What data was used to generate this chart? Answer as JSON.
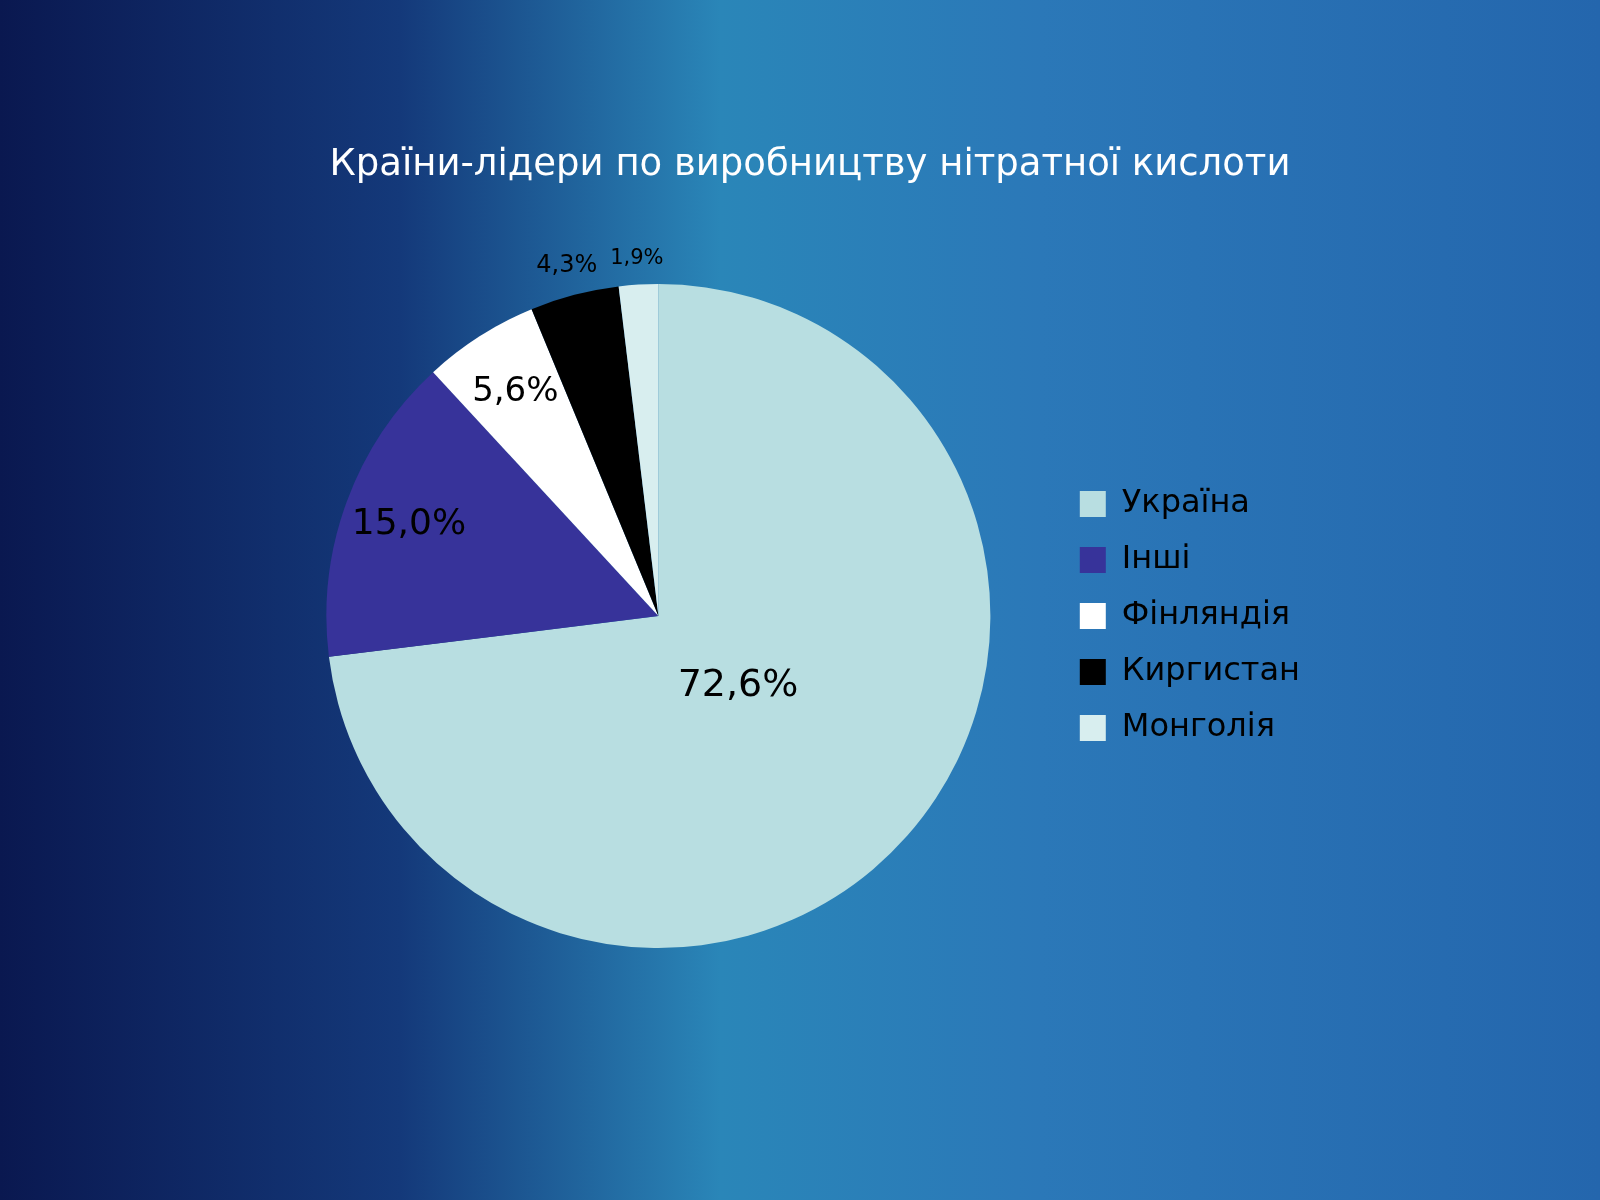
{
  "chart_data": {
    "type": "pie",
    "title": "Країни-лідери по виробництву нітратної кислоти",
    "categories": [
      "Україна",
      "Інші",
      "Фінляндія",
      "Киргистан",
      "Монголія"
    ],
    "values": [
      72.6,
      15.0,
      5.6,
      4.3,
      1.9
    ],
    "colors": [
      "#b8dee1",
      "#37339a",
      "#ffffff",
      "#000000",
      "#d8eeef"
    ],
    "value_labels": [
      "72,6%",
      "15,0%",
      "5,6%",
      "4,3%",
      "1,9%"
    ],
    "legend": "right"
  }
}
